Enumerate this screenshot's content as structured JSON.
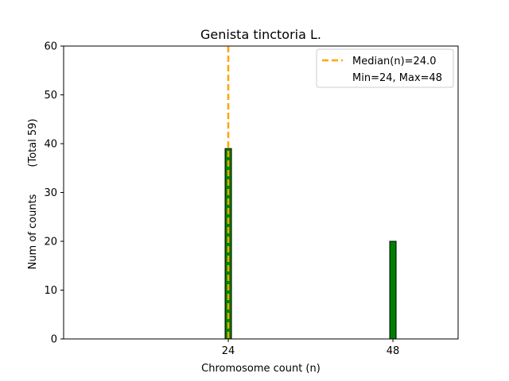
{
  "chart_data": {
    "type": "bar",
    "title": "Genista tinctoria L.",
    "xlabel": "Chromosome count (n)",
    "ylabel": "Num of counts",
    "ylabel_total": "(Total 59)",
    "xlim": [
      0,
      57.5
    ],
    "ylim": [
      0,
      60
    ],
    "xticks": [
      24,
      48
    ],
    "yticks": [
      0,
      10,
      20,
      30,
      40,
      50,
      60
    ],
    "bars": [
      {
        "x": 24,
        "value": 39
      },
      {
        "x": 48,
        "value": 20
      }
    ],
    "bar_color": "#008000",
    "median": 24.0,
    "median_color": "#FFA500",
    "legend": {
      "placement": "top-right",
      "entries": [
        "Median(n)=24.0",
        "Min=24, Max=48"
      ]
    },
    "grid": false
  }
}
